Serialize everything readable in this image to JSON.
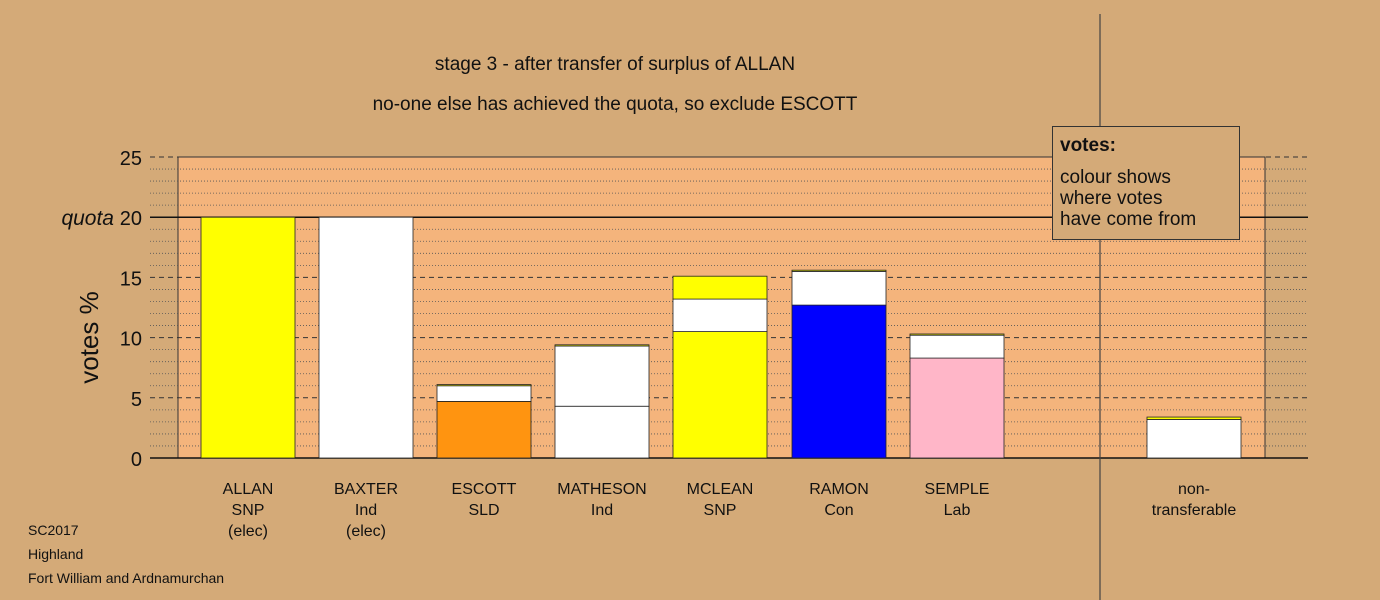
{
  "chart_data": {
    "type": "bar",
    "stacked": true,
    "title": "stage 3 - after transfer of surplus of ALLAN",
    "subtitle": "no-one else has achieved the quota, so exclude ESCOTT",
    "ylabel": "votes %",
    "ylim": [
      0,
      25
    ],
    "yticks": [
      0,
      5,
      10,
      15,
      20,
      25
    ],
    "quota": 20,
    "quota_label": "quota",
    "grid": true,
    "categories": [
      {
        "name": "ALLAN",
        "party": "SNP",
        "note": "(elec)"
      },
      {
        "name": "BAXTER",
        "party": "Ind",
        "note": "(elec)"
      },
      {
        "name": "ESCOTT",
        "party": "SLD",
        "note": ""
      },
      {
        "name": "MATHESON",
        "party": "Ind",
        "note": ""
      },
      {
        "name": "MCLEAN",
        "party": "SNP",
        "note": ""
      },
      {
        "name": "RAMON",
        "party": "Con",
        "note": ""
      },
      {
        "name": "SEMPLE",
        "party": "Lab",
        "note": ""
      },
      {
        "name": "non-",
        "party": "transferable",
        "note": ""
      }
    ],
    "bars": [
      {
        "segments": [
          {
            "value": 20.0,
            "color": "#ffff00"
          }
        ]
      },
      {
        "segments": [
          {
            "value": 20.0,
            "color": "#ffffff"
          }
        ]
      },
      {
        "segments": [
          {
            "value": 4.7,
            "color": "#ff9410"
          },
          {
            "value": 1.3,
            "color": "#ffffff"
          },
          {
            "value": 0.1,
            "color": "#ffff00"
          }
        ]
      },
      {
        "segments": [
          {
            "value": 4.3,
            "color": "#ffffff"
          },
          {
            "value": 5.0,
            "color": "#ffffff"
          },
          {
            "value": 0.1,
            "color": "#ffff00"
          }
        ]
      },
      {
        "segments": [
          {
            "value": 10.5,
            "color": "#ffff00"
          },
          {
            "value": 2.7,
            "color": "#ffffff"
          },
          {
            "value": 1.9,
            "color": "#ffff00"
          }
        ]
      },
      {
        "segments": [
          {
            "value": 12.7,
            "color": "#0000ff"
          },
          {
            "value": 2.8,
            "color": "#ffffff"
          },
          {
            "value": 0.1,
            "color": "#ffff00"
          }
        ]
      },
      {
        "segments": [
          {
            "value": 8.3,
            "color": "#ffb6c8"
          },
          {
            "value": 1.9,
            "color": "#ffffff"
          },
          {
            "value": 0.1,
            "color": "#ffff00"
          }
        ]
      },
      {
        "segments": [
          {
            "value": 3.2,
            "color": "#ffffff"
          },
          {
            "value": 0.2,
            "color": "#ffff00"
          }
        ]
      }
    ],
    "legend": {
      "title": "votes:",
      "text": "colour shows\nwhere votes\nhave come from",
      "placement": "top-right"
    }
  },
  "footer": [
    "SC2017",
    "Highland",
    "Fort William and Ardnamurchan"
  ],
  "colors": {
    "background": "#d4aa78",
    "plot_area": "#f4b47c"
  }
}
